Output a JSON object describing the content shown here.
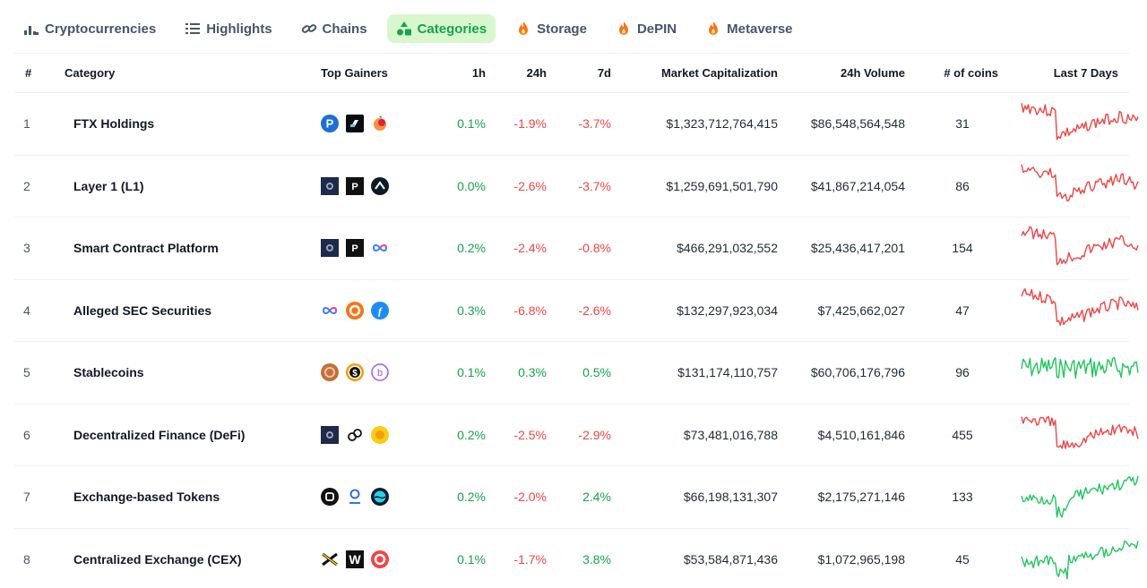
{
  "tabs": [
    {
      "label": "Cryptocurrencies",
      "icon": "bar-chart-icon",
      "active": false
    },
    {
      "label": "Highlights",
      "icon": "list-icon",
      "active": false
    },
    {
      "label": "Chains",
      "icon": "link-icon",
      "active": false
    },
    {
      "label": "Categories",
      "icon": "categories-icon",
      "active": true
    },
    {
      "label": "Storage",
      "icon": "flame-icon",
      "active": false
    },
    {
      "label": "DePIN",
      "icon": "flame-icon",
      "active": false
    },
    {
      "label": "Metaverse",
      "icon": "flame-icon",
      "active": false
    }
  ],
  "columns": {
    "rank": "#",
    "category": "Category",
    "top_gainers": "Top Gainers",
    "h1": "1h",
    "h24": "24h",
    "d7": "7d",
    "market_cap": "Market Capitalization",
    "volume": "24h Volume",
    "coins": "# of coins",
    "last7": "Last 7 Days"
  },
  "colors": {
    "positive": "#16a34a",
    "negative": "#ef4444",
    "accent": "#16a34a",
    "accent_bg": "#d9f7cf"
  },
  "rows": [
    {
      "rank": "1",
      "name": "FTX Holdings",
      "gainers": [
        "pocket-network-coin-icon",
        "ftx-token-icon",
        "serum-coin-icon"
      ],
      "h1": "0.1%",
      "h24": "-1.9%",
      "d7": "-3.7%",
      "market_cap": "$1,323,712,764,415",
      "volume": "$86,548,564,548",
      "coins": "31",
      "trend": "down"
    },
    {
      "rank": "2",
      "name": "Layer 1 (L1)",
      "gainers": [
        "dark-square-coin-icon",
        "black-p-coin-icon",
        "arrow-coin-icon"
      ],
      "h1": "0.0%",
      "h24": "-2.6%",
      "d7": "-3.7%",
      "market_cap": "$1,259,691,501,790",
      "volume": "$41,867,214,054",
      "coins": "86",
      "trend": "down"
    },
    {
      "rank": "3",
      "name": "Smart Contract Platform",
      "gainers": [
        "dark-square-coin-icon",
        "black-p-coin-icon",
        "infinity-coin-icon"
      ],
      "h1": "0.2%",
      "h24": "-2.4%",
      "d7": "-0.8%",
      "market_cap": "$466,291,032,552",
      "volume": "$25,436,417,201",
      "coins": "154",
      "trend": "down"
    },
    {
      "rank": "4",
      "name": "Alleged SEC Securities",
      "gainers": [
        "infinity-coin-icon",
        "orange-ring-coin-icon",
        "blue-f-coin-icon"
      ],
      "h1": "0.3%",
      "h24": "-6.8%",
      "d7": "-2.6%",
      "market_cap": "$132,297,923,034",
      "volume": "$7,425,662,027",
      "coins": "47",
      "trend": "down"
    },
    {
      "rank": "5",
      "name": "Stablecoins",
      "gainers": [
        "bronze-coin-icon",
        "dollar-coin-icon",
        "purple-b-coin-icon"
      ],
      "h1": "0.1%",
      "h24": "0.3%",
      "d7": "0.5%",
      "market_cap": "$131,174,110,757",
      "volume": "$60,706,176,796",
      "coins": "96",
      "trend": "flat"
    },
    {
      "rank": "6",
      "name": "Decentralized Finance (DeFi)",
      "gainers": [
        "dark-square-coin-icon",
        "swirl-coin-icon",
        "gold-coin-icon"
      ],
      "h1": "0.2%",
      "h24": "-2.5%",
      "d7": "-2.9%",
      "market_cap": "$73,481,016,788",
      "volume": "$4,510,161,846",
      "coins": "455",
      "trend": "down"
    },
    {
      "rank": "7",
      "name": "Exchange-based Tokens",
      "gainers": [
        "black-square-coin-icon",
        "person-coin-icon",
        "teal-sphere-coin-icon"
      ],
      "h1": "0.2%",
      "h24": "-2.0%",
      "d7": "2.4%",
      "market_cap": "$66,198,131,307",
      "volume": "$2,175,271,146",
      "coins": "133",
      "trend": "up"
    },
    {
      "rank": "8",
      "name": "Centralized Exchange (CEX)",
      "gainers": [
        "yellow-x-coin-icon",
        "black-w-coin-icon",
        "red-ring-coin-icon"
      ],
      "h1": "0.1%",
      "h24": "-1.7%",
      "d7": "3.8%",
      "market_cap": "$53,584,871,436",
      "volume": "$1,072,965,198",
      "coins": "45",
      "trend": "up"
    }
  ]
}
